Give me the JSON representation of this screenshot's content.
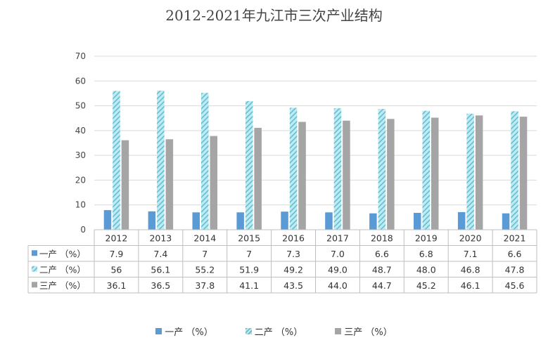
{
  "title": "2012-2021年九江市三次产业结构",
  "colors": {
    "primary": "#5b9bd5",
    "secondary": "#8fd6e3",
    "tertiary": "#a5a5a5",
    "grid": "#d9d9d9",
    "text": "#333333"
  },
  "chart_data": {
    "type": "bar",
    "title": "2012-2021年九江市三次产业结构",
    "categories": [
      "2012",
      "2013",
      "2014",
      "2015",
      "2016",
      "2017",
      "2018",
      "2019",
      "2020",
      "2021"
    ],
    "series": [
      {
        "name": "一产 （%）",
        "values": [
          7.9,
          7.4,
          7,
          7,
          7.3,
          7.0,
          6.6,
          6.8,
          7.1,
          6.6
        ],
        "labels": [
          "7.9",
          "7.4",
          "7",
          "7",
          "7.3",
          "7.0",
          "6.6",
          "6.8",
          "7.1",
          "6.6"
        ]
      },
      {
        "name": "二产 （%）",
        "values": [
          56,
          56.1,
          55.2,
          51.9,
          49.2,
          49.0,
          48.7,
          48.0,
          46.8,
          47.8
        ],
        "labels": [
          "56",
          "56.1",
          "55.2",
          "51.9",
          "49.2",
          "49.0",
          "48.7",
          "48.0",
          "46.8",
          "47.8"
        ]
      },
      {
        "name": "三产 （%）",
        "values": [
          36.1,
          36.5,
          37.8,
          41.1,
          43.5,
          44.0,
          44.7,
          45.2,
          46.1,
          45.6
        ],
        "labels": [
          "36.1",
          "36.5",
          "37.8",
          "41.1",
          "43.5",
          "44.0",
          "44.7",
          "45.2",
          "46.1",
          "45.6"
        ]
      }
    ],
    "y_ticks": [
      "0",
      "10",
      "20",
      "30",
      "40",
      "50",
      "60",
      "70"
    ],
    "ylim": [
      0,
      70
    ],
    "grid": true,
    "legend_position": "bottom",
    "data_table": true
  }
}
